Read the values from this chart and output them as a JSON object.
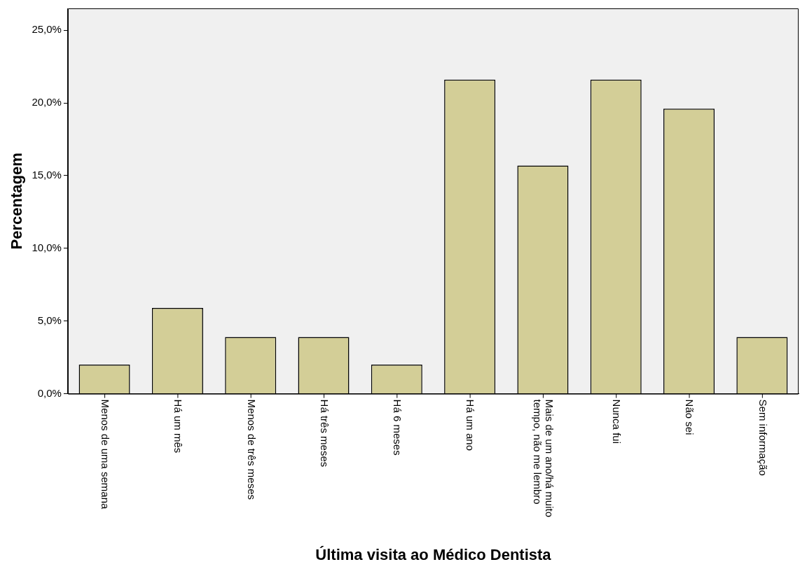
{
  "chart_data": {
    "type": "bar",
    "xlabel": "Última visita ao Médico Dentista",
    "ylabel": "Percentagem",
    "categories": [
      "Menos de uma semana",
      "Há um mês",
      "Menos de três meses",
      "Há três meses",
      "Há 6 meses",
      "Há um ano",
      "Mais de um ano/há muito tempo, não me lembro",
      "Nunca fui",
      "Não sei",
      "Sem informação"
    ],
    "values": [
      2.0,
      5.9,
      3.9,
      3.9,
      2.0,
      21.6,
      15.7,
      21.6,
      19.6,
      3.9
    ],
    "color": "#d3ce97",
    "ylim": [
      0,
      26.5
    ],
    "yticks": [
      {
        "value": 0,
        "label": "0,0%"
      },
      {
        "value": 5,
        "label": "5,0%"
      },
      {
        "value": 10,
        "label": "10,0%"
      },
      {
        "value": 15,
        "label": "15,0%"
      },
      {
        "value": 20,
        "label": "20,0%"
      },
      {
        "value": 25,
        "label": "25,0%"
      }
    ],
    "grid": false,
    "legend": false
  }
}
